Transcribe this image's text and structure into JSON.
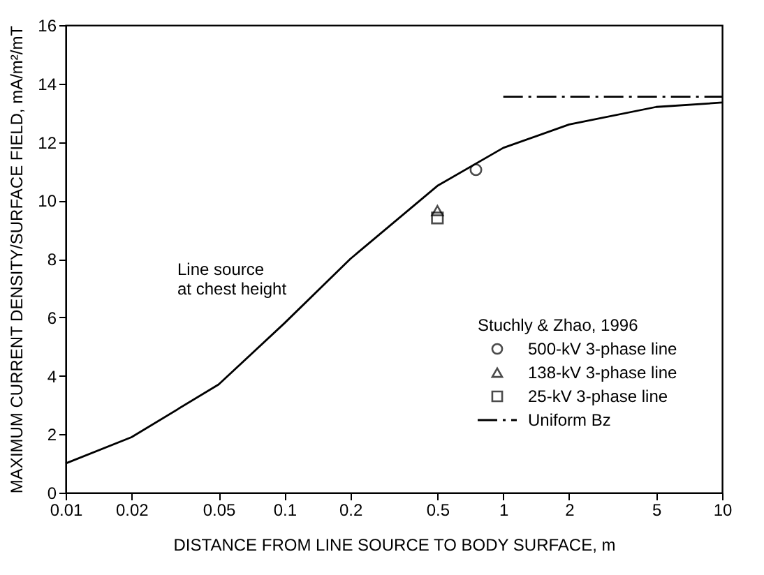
{
  "chart_data": {
    "type": "line",
    "xlabel": "DISTANCE FROM LINE SOURCE TO BODY SURFACE, m",
    "ylabel": "MAXIMUM CURRENT DENSITY/SURFACE FIELD, mA/m²/mT",
    "log": "x",
    "xlim": [
      0.01,
      10
    ],
    "xticks": [
      0.01,
      0.02,
      0.05,
      0.1,
      0.2,
      0.5,
      1,
      2,
      5,
      10
    ],
    "ylim": [
      0,
      16
    ],
    "yticks": [
      0,
      2,
      4,
      6,
      8,
      10,
      12,
      14,
      16
    ],
    "grid": false,
    "legend": "bottom right",
    "legend_title": "Stuchly & Zhao, 1996",
    "annotations": [
      "Line source\nat chest height"
    ],
    "series": [
      {
        "color": "#000000",
        "marker": "none",
        "line_style": "solid",
        "x": [
          0.01,
          0.02,
          0.05,
          0.1,
          0.2,
          0.5,
          1,
          2,
          5,
          10
        ],
        "values": [
          1.0,
          1.9,
          3.7,
          5.8,
          8.0,
          10.5,
          11.8,
          12.6,
          13.2,
          13.35
        ]
      },
      {
        "type": "scatter",
        "name": "500-kV 3-phase line",
        "color": "#000000",
        "marker": "circle",
        "x": [
          0.75
        ],
        "values": [
          11.05
        ]
      },
      {
        "type": "scatter",
        "name": "138-kV 3-phase line",
        "color": "#000000",
        "marker": "triangle",
        "x": [
          0.5
        ],
        "values": [
          9.65
        ]
      },
      {
        "type": "scatter",
        "name": "25-kV 3-phase line",
        "color": "#000000",
        "marker": "square",
        "x": [
          0.5
        ],
        "values": [
          9.4
        ]
      },
      {
        "name": "Uniform Bz",
        "color": "#000000",
        "marker": "none",
        "line_style": "dashed",
        "x": [
          1,
          10
        ],
        "values": [
          13.55,
          13.55
        ]
      }
    ]
  }
}
